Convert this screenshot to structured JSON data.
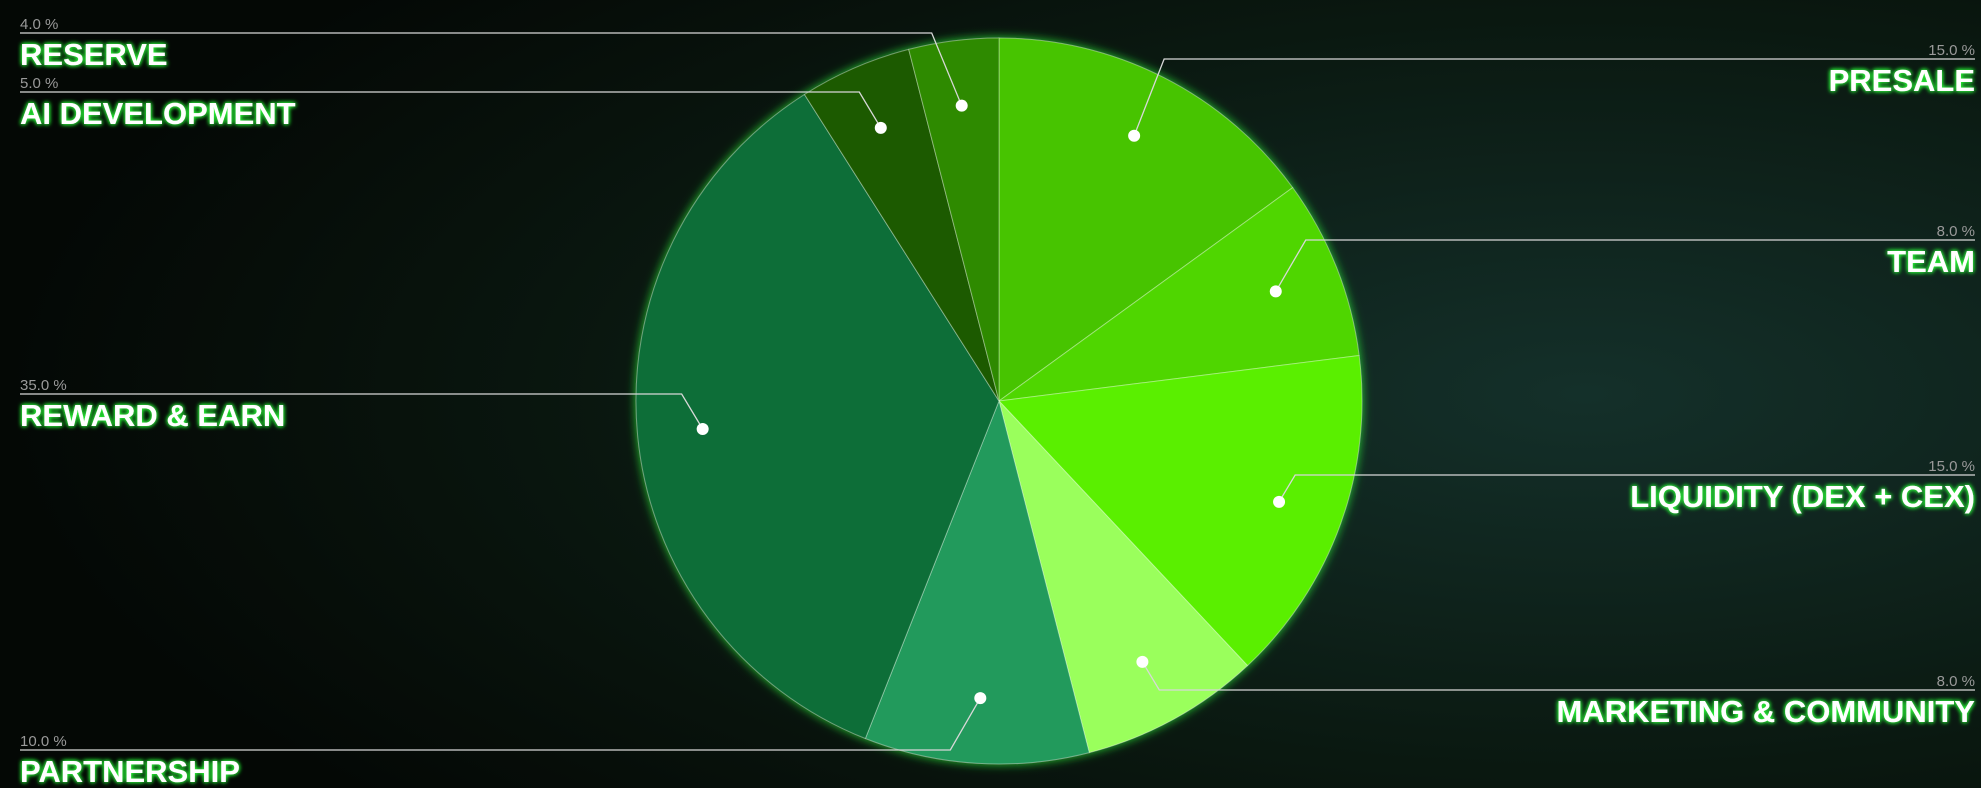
{
  "chart_data": {
    "type": "pie",
    "categories": [
      "PRESALE",
      "TEAM",
      "LIQUIDITY (DEX + CEX)",
      "MARKETING & COMMUNITY",
      "PARTNERSHIP",
      "REWARD & EARN",
      "AI DEVELOPMENT",
      "RESERVE"
    ],
    "values": [
      15,
      8,
      15,
      8,
      10,
      35,
      5,
      4
    ],
    "value_labels": [
      "15.0 %",
      "8.0 %",
      "15.0 %",
      "8.0 %",
      "10.0 %",
      "35.0 %",
      "5.0 %",
      "4.0 %"
    ],
    "colors": [
      "#47c400",
      "#50d600",
      "#5aef00",
      "#9aff5c",
      "#219a5c",
      "#0f6e37",
      "#1e5a00",
      "#2e8a00"
    ]
  }
}
